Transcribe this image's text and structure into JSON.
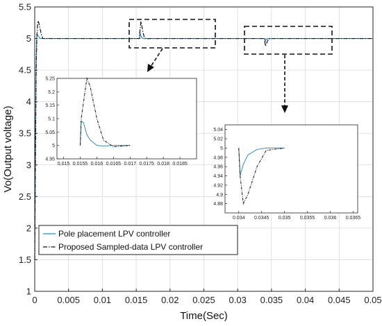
{
  "chart_data": {
    "type": "line",
    "title": "",
    "xlabel": "Time(Sec)",
    "ylabel": "Vo(Output voltage)",
    "xlim": [
      0,
      0.05
    ],
    "ylim": [
      1,
      5.5
    ],
    "x_ticks": [
      "0",
      "0.005",
      "0.01",
      "0.015",
      "0.02",
      "0.025",
      "0.03",
      "0.035",
      "0.04",
      "0.045",
      "0.05"
    ],
    "y_ticks": [
      "1",
      "1.5",
      "2",
      "2.5",
      "3",
      "3.5",
      "4",
      "4.5",
      "5",
      "5.5"
    ],
    "grid": true,
    "legend_position": "bottom-left",
    "colors": {
      "pole": "#2e8bc0",
      "proposed": "#111111"
    },
    "series": [
      {
        "name": "Pole placement LPV controller",
        "style": "solid",
        "x": [
          0,
          0.0001,
          0.0002,
          0.0003,
          0.0004,
          0.0006,
          0.0008,
          0.001,
          0.002,
          0.0155,
          0.01553,
          0.0156,
          0.0157,
          0.0158,
          0.016,
          0.0162,
          0.0165,
          0.017,
          0.034,
          0.03403,
          0.0341,
          0.0342,
          0.0344,
          0.0346,
          0.035,
          0.05
        ],
        "y": [
          1.5,
          3.2,
          4.6,
          5.02,
          5.06,
          5.03,
          5.0,
          5.0,
          5.0,
          5.0,
          5.09,
          5.085,
          5.04,
          5.02,
          5.0,
          4.998,
          5.0,
          5.0,
          5.0,
          4.94,
          4.965,
          4.985,
          4.997,
          5.0,
          5.0,
          5.0
        ]
      },
      {
        "name": "Proposed Sampled-data LPV controller",
        "style": "dash-dot",
        "x": [
          0,
          0.0001,
          0.0002,
          0.0003,
          0.0004,
          0.0005,
          0.0006,
          0.0008,
          0.001,
          0.0012,
          0.0015,
          0.0155,
          0.01553,
          0.0157,
          0.0158,
          0.016,
          0.0162,
          0.0165,
          0.017,
          0.034,
          0.03403,
          0.0341,
          0.0342,
          0.0344,
          0.0346,
          0.035,
          0.05
        ],
        "y": [
          1.5,
          3.0,
          4.4,
          5.0,
          5.2,
          5.28,
          5.25,
          5.15,
          5.05,
          5.0,
          5.0,
          5.0,
          5.1,
          5.27,
          5.22,
          5.1,
          5.02,
          4.995,
          5.0,
          5.0,
          4.94,
          4.88,
          4.9,
          4.96,
          4.995,
          5.0,
          5.0
        ]
      }
    ],
    "insets": [
      {
        "xlim": [
          0.0148,
          0.019
        ],
        "ylim": [
          4.95,
          5.25
        ],
        "x_ticks": [
          "0.015",
          "0.0155",
          "0.016",
          "0.0165",
          "0.017",
          "0.0175",
          "0.018",
          "0.0185"
        ],
        "y_ticks": [
          "4.95",
          "5",
          "5.05",
          "5.1",
          "5.15",
          "5.2",
          "5.25"
        ]
      },
      {
        "xlim": [
          0.0337,
          0.0366
        ],
        "ylim": [
          4.86,
          5.05
        ],
        "x_ticks": [
          "0.034",
          "0.0345",
          "0.035",
          "0.0355",
          "0.036",
          "0.0365"
        ],
        "y_ticks": [
          "4.88",
          "4.9",
          "4.92",
          "4.94",
          "4.96",
          "4.98",
          "5",
          "5.02",
          "5.04"
        ]
      }
    ]
  }
}
